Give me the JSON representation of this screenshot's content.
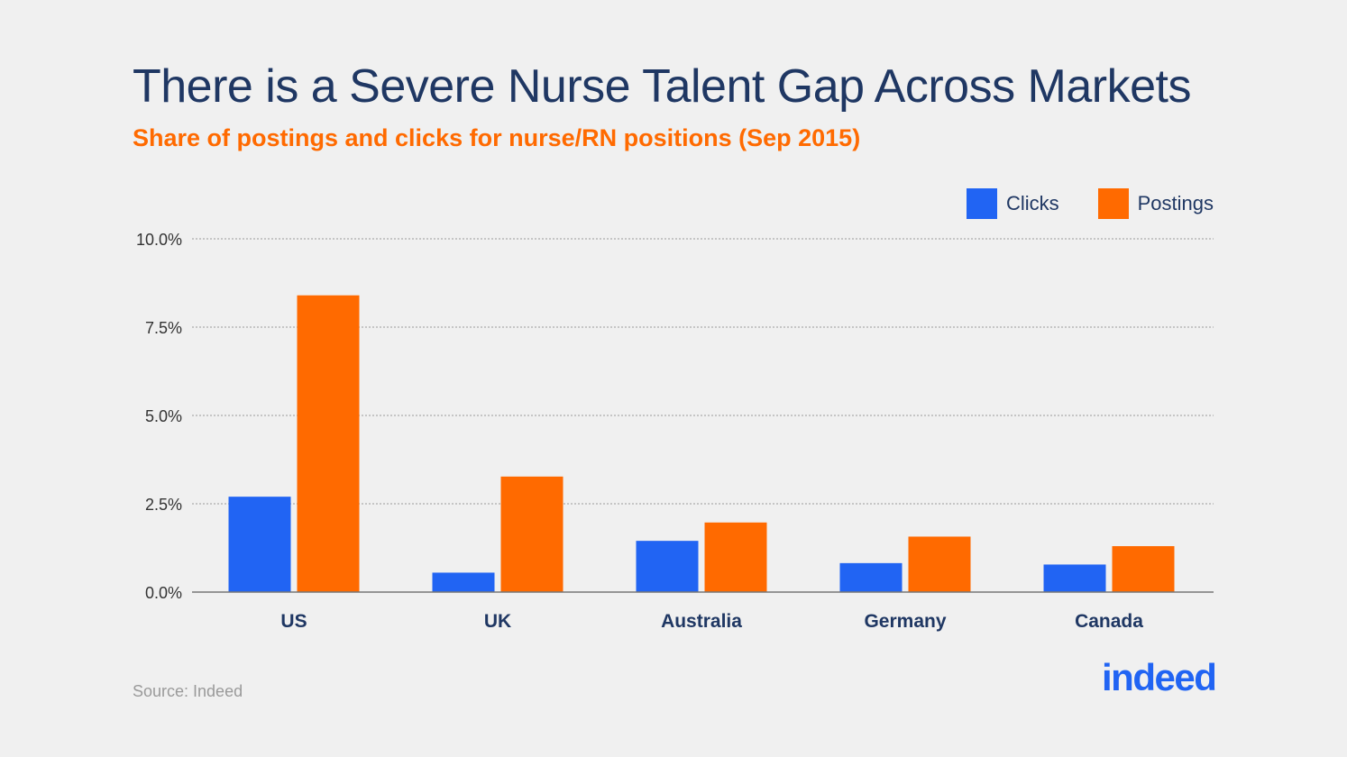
{
  "title": "There is a Severe Nurse Talent Gap Across Markets",
  "subtitle": "Share of postings and clicks for nurse/RN positions (Sep 2015)",
  "source": "Source: Indeed",
  "logo": {
    "text": "indeed",
    "color": "#2164f3"
  },
  "colors": {
    "clicks": "#2164f3",
    "postings": "#ff6a00",
    "title": "#1f3763",
    "axis_text": "#333333"
  },
  "chart_data": {
    "type": "bar",
    "title": "There is a Severe Nurse Talent Gap Across Markets",
    "subtitle": "Share of postings and clicks for nurse/RN positions (Sep 2015)",
    "categories": [
      "US",
      "UK",
      "Australia",
      "Germany",
      "Canada"
    ],
    "series": [
      {
        "name": "Clicks",
        "values": [
          2.7,
          0.55,
          1.45,
          0.82,
          0.78
        ]
      },
      {
        "name": "Postings",
        "values": [
          8.4,
          3.27,
          1.97,
          1.57,
          1.3
        ]
      }
    ],
    "y_ticks": [
      "0.0%",
      "2.5%",
      "5.0%",
      "7.5%",
      "10.0%"
    ],
    "y_tick_values": [
      0,
      2.5,
      5,
      7.5,
      10
    ],
    "ylim": [
      0,
      10
    ],
    "grid": true,
    "legend_position": "top-right"
  }
}
